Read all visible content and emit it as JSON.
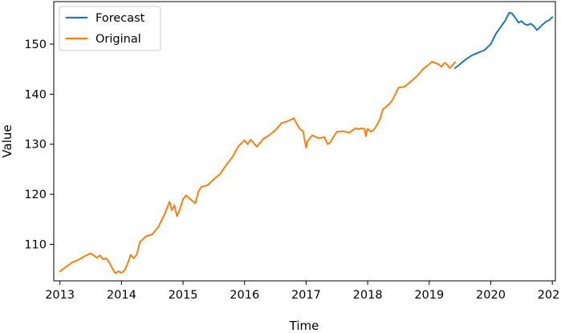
{
  "chart_data": {
    "type": "line",
    "title": "",
    "xlabel": "Time",
    "ylabel": "Value",
    "x_unit": "year",
    "xlim": [
      2012.9,
      2021.05
    ],
    "ylim": [
      102.7,
      158.5
    ],
    "grid": false,
    "legend_position": "top-left",
    "x_ticks": [
      2013,
      2014,
      2015,
      2016,
      2017,
      2018,
      2019,
      2020,
      2021
    ],
    "y_ticks": [
      110,
      120,
      130,
      140,
      150
    ],
    "series": [
      {
        "name": "Forecast",
        "color": "#1f77b4",
        "x": [
          2019.42,
          2019.5,
          2019.6,
          2019.7,
          2019.8,
          2019.9,
          2020.0,
          2020.08,
          2020.16,
          2020.24,
          2020.3,
          2020.35,
          2020.4,
          2020.45,
          2020.5,
          2020.55,
          2020.6,
          2020.65,
          2020.7,
          2020.75,
          2020.8,
          2020.85,
          2020.9,
          2020.95,
          2021.0
        ],
        "y": [
          145.2,
          146.0,
          147.0,
          147.8,
          148.3,
          148.8,
          150.0,
          152.0,
          153.4,
          154.8,
          156.3,
          156.1,
          155.2,
          154.3,
          154.6,
          154.0,
          153.8,
          154.1,
          153.6,
          152.8,
          153.4,
          154.0,
          154.5,
          154.8,
          155.4
        ]
      },
      {
        "name": "Original",
        "color": "#ff7f0e",
        "x": [
          2013.0,
          2013.1,
          2013.2,
          2013.3,
          2013.4,
          2013.5,
          2013.6,
          2013.65,
          2013.7,
          2013.75,
          2013.8,
          2013.85,
          2013.9,
          2013.95,
          2014.0,
          2014.05,
          2014.1,
          2014.15,
          2014.2,
          2014.25,
          2014.3,
          2014.4,
          2014.5,
          2014.6,
          2014.7,
          2014.78,
          2014.82,
          2014.86,
          2014.9,
          2014.95,
          2015.0,
          2015.05,
          2015.1,
          2015.2,
          2015.25,
          2015.3,
          2015.4,
          2015.5,
          2015.6,
          2015.7,
          2015.8,
          2015.9,
          2016.0,
          2016.05,
          2016.1,
          2016.2,
          2016.3,
          2016.4,
          2016.5,
          2016.6,
          2016.7,
          2016.8,
          2016.85,
          2016.9,
          2016.95,
          2017.0,
          2017.02,
          2017.05,
          2017.1,
          2017.2,
          2017.3,
          2017.35,
          2017.4,
          2017.45,
          2017.5,
          2017.6,
          2017.7,
          2017.8,
          2017.85,
          2017.9,
          2017.95,
          2017.97,
          2018.0,
          2018.05,
          2018.1,
          2018.15,
          2018.2,
          2018.25,
          2018.3,
          2018.35,
          2018.4,
          2018.45,
          2018.5,
          2018.6,
          2018.7,
          2018.8,
          2018.9,
          2019.0,
          2019.05,
          2019.1,
          2019.15,
          2019.2,
          2019.25,
          2019.3,
          2019.33,
          2019.37,
          2019.42
        ],
        "y": [
          104.6,
          105.5,
          106.4,
          106.9,
          107.6,
          108.2,
          107.3,
          107.8,
          107.0,
          107.2,
          106.4,
          105.2,
          104.2,
          104.6,
          104.3,
          104.8,
          106.1,
          107.9,
          107.2,
          108.0,
          110.5,
          111.6,
          112.0,
          113.5,
          116.0,
          118.5,
          116.8,
          117.8,
          115.6,
          117.0,
          119.0,
          119.8,
          119.2,
          118.2,
          120.5,
          121.5,
          121.8,
          123.0,
          124.0,
          125.8,
          127.4,
          129.6,
          130.8,
          130.0,
          130.9,
          129.5,
          131.0,
          131.8,
          132.8,
          134.2,
          134.6,
          135.2,
          134.0,
          133.0,
          132.6,
          129.3,
          130.5,
          131.0,
          131.8,
          131.2,
          131.4,
          130.0,
          130.5,
          131.6,
          132.5,
          132.6,
          132.3,
          133.2,
          133.0,
          133.2,
          133.0,
          131.6,
          133.1,
          132.5,
          132.9,
          133.8,
          135.0,
          137.0,
          137.5,
          138.0,
          138.8,
          140.0,
          141.3,
          141.5,
          142.5,
          143.6,
          145.0,
          146.0,
          146.5,
          146.2,
          146.0,
          145.5,
          146.3,
          145.8,
          145.2,
          145.7,
          146.4
        ]
      }
    ]
  }
}
